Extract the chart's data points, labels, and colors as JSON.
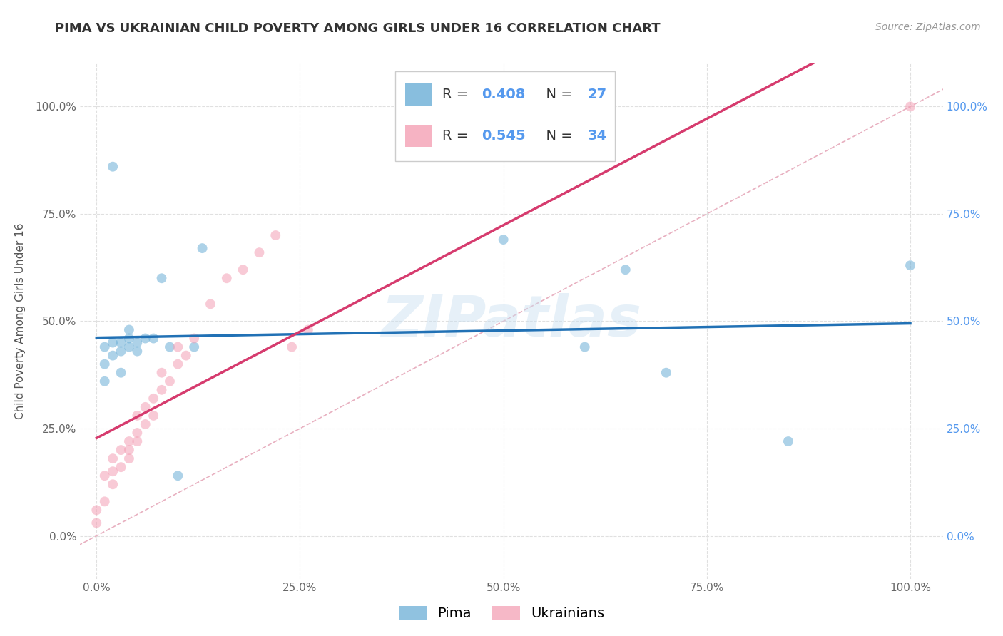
{
  "title": "PIMA VS UKRAINIAN CHILD POVERTY AMONG GIRLS UNDER 16 CORRELATION CHART",
  "source": "Source: ZipAtlas.com",
  "ylabel": "Child Poverty Among Girls Under 16",
  "xlabel": "",
  "legend_bottom": [
    "Pima",
    "Ukrainians"
  ],
  "pima_R": "0.408",
  "pima_N": "27",
  "ukr_R": "0.545",
  "ukr_N": "34",
  "pima_color": "#6baed6",
  "ukr_color": "#f4a0b5",
  "pima_line_color": "#2171b5",
  "ukr_line_color": "#d63b6e",
  "diagonal_color": "#d0d0d0",
  "background_color": "#ffffff",
  "watermark_text": "ZIPatlas",
  "pima_x": [
    0.02,
    0.01,
    0.01,
    0.01,
    0.02,
    0.02,
    0.03,
    0.03,
    0.03,
    0.04,
    0.04,
    0.04,
    0.05,
    0.05,
    0.06,
    0.07,
    0.08,
    0.09,
    0.1,
    0.12,
    0.13,
    0.5,
    0.6,
    0.65,
    0.7,
    0.85,
    1.0
  ],
  "pima_y": [
    0.86,
    0.44,
    0.4,
    0.36,
    0.45,
    0.42,
    0.45,
    0.43,
    0.38,
    0.44,
    0.46,
    0.48,
    0.45,
    0.43,
    0.46,
    0.46,
    0.6,
    0.44,
    0.14,
    0.44,
    0.67,
    0.69,
    0.44,
    0.62,
    0.38,
    0.22,
    0.63
  ],
  "ukr_x": [
    0.0,
    0.0,
    0.01,
    0.01,
    0.02,
    0.02,
    0.02,
    0.03,
    0.03,
    0.04,
    0.04,
    0.04,
    0.05,
    0.05,
    0.05,
    0.06,
    0.06,
    0.07,
    0.07,
    0.08,
    0.08,
    0.09,
    0.1,
    0.1,
    0.11,
    0.12,
    0.14,
    0.16,
    0.18,
    0.2,
    0.22,
    0.24,
    0.26,
    1.0
  ],
  "ukr_y": [
    0.06,
    0.03,
    0.14,
    0.08,
    0.15,
    0.18,
    0.12,
    0.16,
    0.2,
    0.22,
    0.2,
    0.18,
    0.24,
    0.22,
    0.28,
    0.26,
    0.3,
    0.32,
    0.28,
    0.34,
    0.38,
    0.36,
    0.4,
    0.44,
    0.42,
    0.46,
    0.54,
    0.6,
    0.62,
    0.66,
    0.7,
    0.44,
    0.48,
    1.0
  ],
  "xlim": [
    -0.02,
    1.04
  ],
  "ylim": [
    -0.1,
    1.1
  ],
  "xticks": [
    0.0,
    0.25,
    0.5,
    0.75,
    1.0
  ],
  "yticks": [
    0.0,
    0.25,
    0.5,
    0.75,
    1.0
  ],
  "xticklabels": [
    "0.0%",
    "25.0%",
    "50.0%",
    "75.0%",
    "100.0%"
  ],
  "yticklabels": [
    "0.0%",
    "25.0%",
    "50.0%",
    "75.0%",
    "100.0%"
  ],
  "right_yticklabels": [
    "0.0%",
    "25.0%",
    "50.0%",
    "75.0%",
    "100.0%"
  ],
  "grid_color": "#e0e0e0",
  "title_fontsize": 13,
  "axis_fontsize": 11,
  "tick_fontsize": 11,
  "legend_fontsize": 14,
  "marker_size": 100,
  "marker_alpha": 0.55,
  "line_width": 2.5,
  "left_tick_color": "#666666",
  "right_tick_color": "#5599ee"
}
